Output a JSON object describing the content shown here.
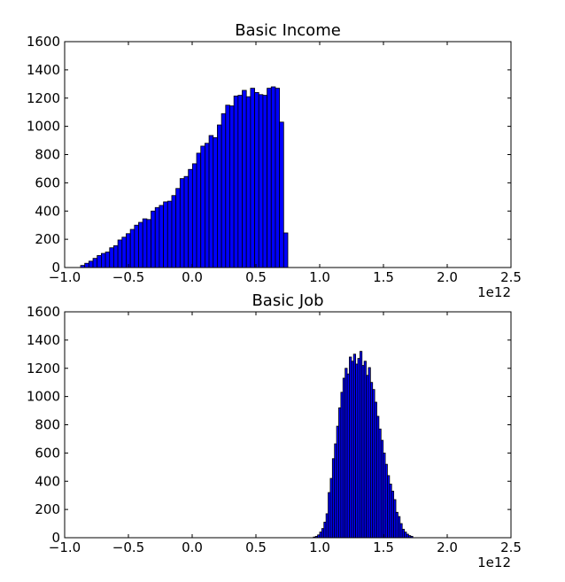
{
  "chart_data": [
    {
      "type": "bar",
      "title": "Basic Income",
      "xlabel": "",
      "ylabel": "",
      "xlim": [
        -1.0,
        2.5
      ],
      "ylim": [
        0,
        1600
      ],
      "x_ticks": [
        "−1.0",
        "−0.5",
        "0.0",
        "0.5",
        "1.0",
        "1.5",
        "2.0",
        "2.5"
      ],
      "x_tick_values": [
        -1.0,
        -0.5,
        0.0,
        0.5,
        1.0,
        1.5,
        2.0,
        2.5
      ],
      "y_ticks": [
        "0",
        "200",
        "400",
        "600",
        "800",
        "1000",
        "1200",
        "1400",
        "1600"
      ],
      "y_tick_values": [
        0,
        200,
        400,
        600,
        800,
        1000,
        1200,
        1400,
        1600
      ],
      "offset_text": "1e12",
      "bar_color": "#0000ff",
      "bin_start": -0.875,
      "bin_width": 0.0325,
      "values": [
        15,
        30,
        45,
        65,
        85,
        100,
        110,
        140,
        155,
        195,
        215,
        240,
        270,
        300,
        320,
        345,
        340,
        400,
        425,
        440,
        465,
        470,
        510,
        560,
        630,
        645,
        695,
        735,
        810,
        860,
        880,
        935,
        920,
        1010,
        1090,
        1150,
        1145,
        1215,
        1220,
        1255,
        1210,
        1270,
        1240,
        1225,
        1220,
        1270,
        1280,
        1270,
        1030,
        245
      ]
    },
    {
      "type": "bar",
      "title": "Basic Job",
      "xlabel": "",
      "ylabel": "",
      "xlim": [
        -1.0,
        2.5
      ],
      "ylim": [
        0,
        1600
      ],
      "x_ticks": [
        "−1.0",
        "−0.5",
        "0.0",
        "0.5",
        "1.0",
        "1.5",
        "2.0",
        "2.5"
      ],
      "x_tick_values": [
        -1.0,
        -0.5,
        0.0,
        0.5,
        1.0,
        1.5,
        2.0,
        2.5
      ],
      "y_ticks": [
        "0",
        "200",
        "400",
        "600",
        "800",
        "1000",
        "1200",
        "1400",
        "1600"
      ],
      "y_tick_values": [
        0,
        200,
        400,
        600,
        800,
        1000,
        1200,
        1400,
        1600
      ],
      "offset_text": "1e12",
      "bar_color": "#0000ff",
      "bin_start": 0.95,
      "bin_width": 0.0166,
      "values": [
        5,
        10,
        20,
        40,
        65,
        110,
        170,
        320,
        420,
        560,
        665,
        790,
        920,
        1030,
        1130,
        1200,
        1160,
        1280,
        1250,
        1300,
        1230,
        1270,
        1320,
        1220,
        1250,
        1150,
        1205,
        1100,
        1050,
        960,
        860,
        770,
        690,
        600,
        520,
        440,
        380,
        330,
        270,
        180,
        150,
        100,
        60,
        40,
        25,
        15,
        10
      ]
    }
  ]
}
